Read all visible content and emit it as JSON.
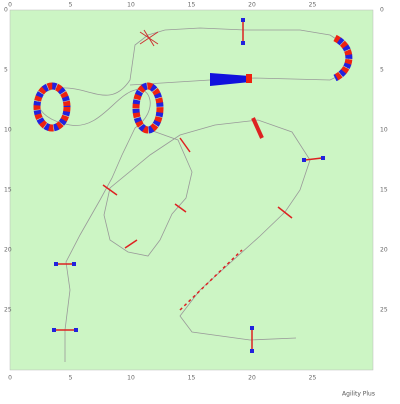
{
  "grid": {
    "xlabels": [
      0,
      5,
      10,
      15,
      20,
      25
    ],
    "ylabels": [
      0,
      5,
      10,
      15,
      20,
      25
    ],
    "width": 30,
    "height": 30
  },
  "footer": {
    "brand": "Agility Plus"
  }
}
